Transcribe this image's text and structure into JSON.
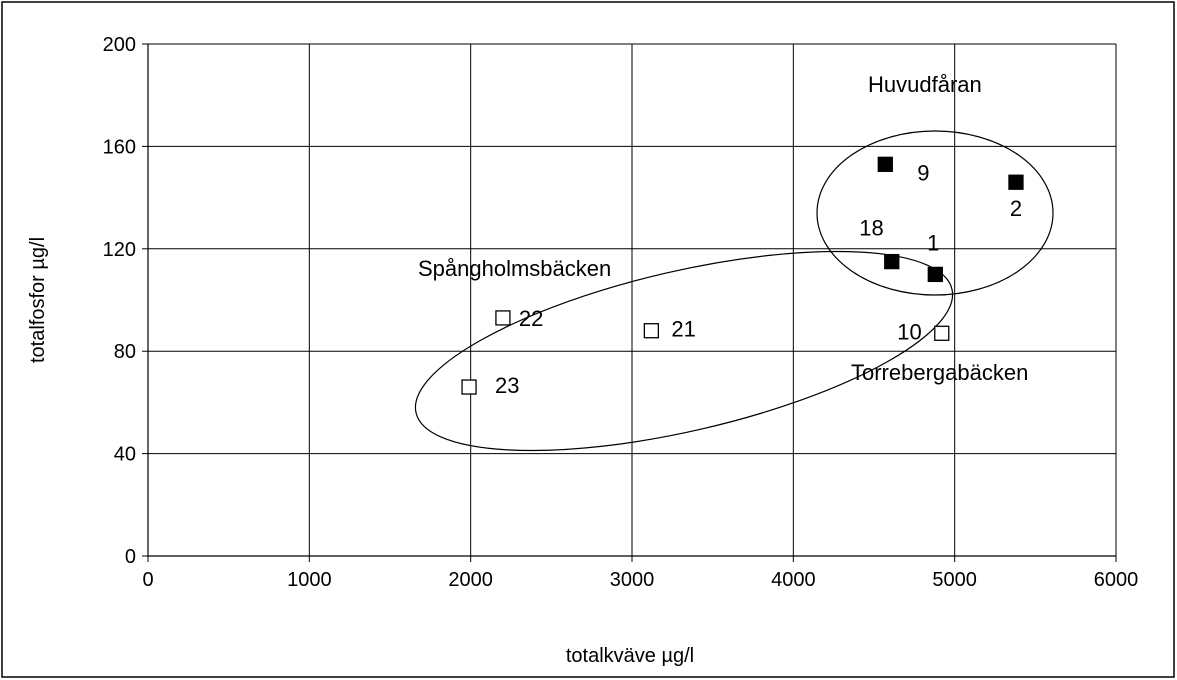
{
  "chart_data": {
    "type": "scatter",
    "title": "",
    "xlabel": "totalkväve  µg/l",
    "ylabel": "totalfosfor  µg/l",
    "xlim": [
      0,
      6000
    ],
    "ylim": [
      0,
      200
    ],
    "xticks": [
      "0",
      "1000",
      "2000",
      "3000",
      "4000",
      "5000",
      "6000"
    ],
    "yticks": [
      "0",
      "40",
      "80",
      "120",
      "160",
      "200"
    ],
    "grid": true,
    "series": [
      {
        "marker": "filled-square",
        "color": "#000000",
        "points": [
          {
            "label": "9",
            "x": 4570,
            "y": 153
          },
          {
            "label": "2",
            "x": 5380,
            "y": 146
          },
          {
            "label": "18",
            "x": 4610,
            "y": 115
          },
          {
            "label": "1",
            "x": 4880,
            "y": 110
          }
        ]
      },
      {
        "marker": "open-square",
        "color": "#000000",
        "points": [
          {
            "label": "22",
            "x": 2200,
            "y": 93
          },
          {
            "label": "21",
            "x": 3120,
            "y": 88
          },
          {
            "label": "10",
            "x": 4920,
            "y": 87
          },
          {
            "label": "23",
            "x": 1990,
            "y": 66
          }
        ]
      }
    ],
    "annotations": [
      {
        "text": "Huvudfåran"
      },
      {
        "text": "Spångholmsbäcken"
      },
      {
        "text": "Torrebergabäcken"
      }
    ]
  }
}
